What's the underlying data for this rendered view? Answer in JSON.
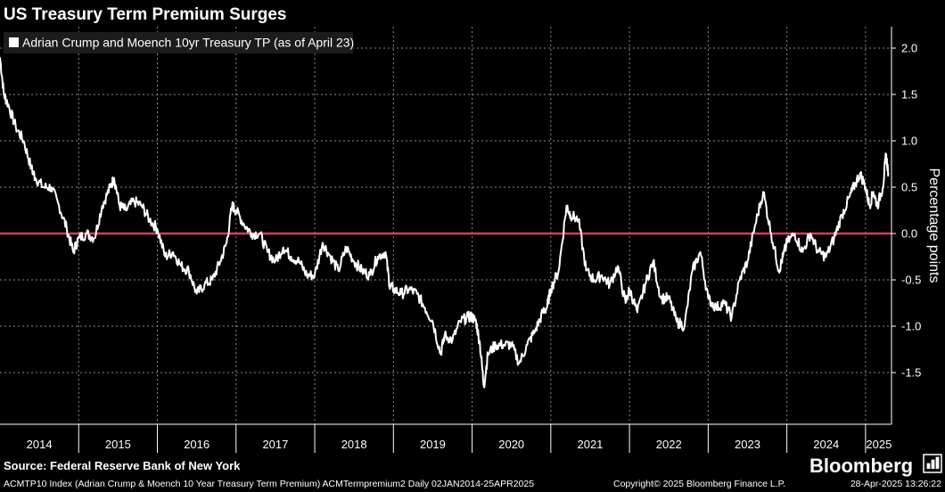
{
  "chart_data": {
    "type": "line",
    "title": "US Treasury Term Premium Surges",
    "legend": "Adrian Crump and Moench 10yr Treasury TP (as of April 23)",
    "legend_position": "top-left",
    "ylabel": "Percentage points",
    "xlabel": "",
    "ylim": [
      -2.0,
      2.2
    ],
    "y_ticks": [
      "2.0",
      "1.5",
      "1.0",
      "0.5",
      "0.0",
      "-0.5",
      "-1.0",
      "-1.5"
    ],
    "x_ticks": [
      "2014",
      "2015",
      "2016",
      "2017",
      "2018",
      "2019",
      "2020",
      "2021",
      "2022",
      "2023",
      "2024",
      "2025"
    ],
    "xlim": [
      2014.0,
      2025.33
    ],
    "grid": true,
    "reference_line": {
      "y": 0.0,
      "color": "#d2424e"
    },
    "series": [
      {
        "color": "#ffffff",
        "points": [
          [
            2014.0,
            1.9
          ],
          [
            2014.05,
            1.5
          ],
          [
            2014.1,
            1.4
          ],
          [
            2014.2,
            1.15
          ],
          [
            2014.3,
            1.0
          ],
          [
            2014.4,
            0.7
          ],
          [
            2014.45,
            0.6
          ],
          [
            2014.55,
            0.5
          ],
          [
            2014.65,
            0.5
          ],
          [
            2014.75,
            0.3
          ],
          [
            2014.85,
            0.05
          ],
          [
            2014.93,
            -0.2
          ],
          [
            2015.0,
            -0.05
          ],
          [
            2015.1,
            0.0
          ],
          [
            2015.2,
            -0.05
          ],
          [
            2015.3,
            0.3
          ],
          [
            2015.4,
            0.5
          ],
          [
            2015.45,
            0.6
          ],
          [
            2015.52,
            0.3
          ],
          [
            2015.6,
            0.25
          ],
          [
            2015.7,
            0.35
          ],
          [
            2015.8,
            0.3
          ],
          [
            2015.9,
            0.15
          ],
          [
            2016.0,
            0.05
          ],
          [
            2016.1,
            -0.25
          ],
          [
            2016.2,
            -0.2
          ],
          [
            2016.3,
            -0.35
          ],
          [
            2016.4,
            -0.4
          ],
          [
            2016.5,
            -0.65
          ],
          [
            2016.6,
            -0.55
          ],
          [
            2016.7,
            -0.5
          ],
          [
            2016.8,
            -0.3
          ],
          [
            2016.88,
            -0.1
          ],
          [
            2016.95,
            0.3
          ],
          [
            2017.0,
            0.25
          ],
          [
            2017.1,
            0.1
          ],
          [
            2017.2,
            0.0
          ],
          [
            2017.3,
            0.0
          ],
          [
            2017.4,
            -0.2
          ],
          [
            2017.5,
            -0.3
          ],
          [
            2017.6,
            -0.15
          ],
          [
            2017.7,
            -0.25
          ],
          [
            2017.8,
            -0.3
          ],
          [
            2017.9,
            -0.45
          ],
          [
            2018.0,
            -0.45
          ],
          [
            2018.1,
            -0.1
          ],
          [
            2018.2,
            -0.25
          ],
          [
            2018.3,
            -0.4
          ],
          [
            2018.4,
            -0.15
          ],
          [
            2018.5,
            -0.3
          ],
          [
            2018.6,
            -0.4
          ],
          [
            2018.7,
            -0.45
          ],
          [
            2018.8,
            -0.25
          ],
          [
            2018.9,
            -0.2
          ],
          [
            2018.95,
            -0.55
          ],
          [
            2019.0,
            -0.6
          ],
          [
            2019.1,
            -0.65
          ],
          [
            2019.2,
            -0.6
          ],
          [
            2019.3,
            -0.65
          ],
          [
            2019.4,
            -0.8
          ],
          [
            2019.5,
            -0.95
          ],
          [
            2019.6,
            -1.3
          ],
          [
            2019.65,
            -1.1
          ],
          [
            2019.75,
            -1.15
          ],
          [
            2019.85,
            -0.95
          ],
          [
            2019.95,
            -0.9
          ],
          [
            2020.0,
            -0.9
          ],
          [
            2020.05,
            -0.95
          ],
          [
            2020.1,
            -1.2
          ],
          [
            2020.15,
            -1.65
          ],
          [
            2020.2,
            -1.3
          ],
          [
            2020.3,
            -1.2
          ],
          [
            2020.4,
            -1.2
          ],
          [
            2020.5,
            -1.2
          ],
          [
            2020.6,
            -1.4
          ],
          [
            2020.7,
            -1.2
          ],
          [
            2020.8,
            -1.05
          ],
          [
            2020.9,
            -0.85
          ],
          [
            2020.95,
            -0.8
          ],
          [
            2021.0,
            -0.6
          ],
          [
            2021.1,
            -0.4
          ],
          [
            2021.2,
            0.3
          ],
          [
            2021.25,
            0.2
          ],
          [
            2021.35,
            0.15
          ],
          [
            2021.45,
            -0.4
          ],
          [
            2021.55,
            -0.5
          ],
          [
            2021.65,
            -0.45
          ],
          [
            2021.75,
            -0.55
          ],
          [
            2021.85,
            -0.35
          ],
          [
            2021.95,
            -0.75
          ],
          [
            2022.0,
            -0.6
          ],
          [
            2022.1,
            -0.85
          ],
          [
            2022.2,
            -0.55
          ],
          [
            2022.3,
            -0.3
          ],
          [
            2022.4,
            -0.7
          ],
          [
            2022.5,
            -0.7
          ],
          [
            2022.6,
            -0.95
          ],
          [
            2022.7,
            -1.0
          ],
          [
            2022.8,
            -0.4
          ],
          [
            2022.9,
            -0.2
          ],
          [
            2023.0,
            -0.7
          ],
          [
            2023.1,
            -0.8
          ],
          [
            2023.2,
            -0.75
          ],
          [
            2023.3,
            -0.9
          ],
          [
            2023.4,
            -0.5
          ],
          [
            2023.5,
            -0.3
          ],
          [
            2023.6,
            0.1
          ],
          [
            2023.7,
            0.45
          ],
          [
            2023.8,
            0.0
          ],
          [
            2023.9,
            -0.4
          ],
          [
            2023.95,
            -0.25
          ],
          [
            2024.0,
            -0.1
          ],
          [
            2024.1,
            0.0
          ],
          [
            2024.2,
            -0.2
          ],
          [
            2024.3,
            0.0
          ],
          [
            2024.4,
            -0.2
          ],
          [
            2024.5,
            -0.25
          ],
          [
            2024.6,
            -0.05
          ],
          [
            2024.7,
            0.2
          ],
          [
            2024.8,
            0.4
          ],
          [
            2024.85,
            0.5
          ],
          [
            2024.93,
            0.65
          ],
          [
            2025.0,
            0.5
          ],
          [
            2025.05,
            0.3
          ],
          [
            2025.1,
            0.45
          ],
          [
            2025.15,
            0.3
          ],
          [
            2025.22,
            0.5
          ],
          [
            2025.26,
            0.85
          ],
          [
            2025.29,
            0.65
          ]
        ]
      }
    ]
  },
  "footer": {
    "source": "Source: Federal Reserve Bank of New York",
    "brand": "Bloomberg",
    "index_info": "ACMTP10 Index (Adrian Crump & Moench 10 Year Treasury Term Premium) ACMTermpremium2  Daily 02JAN2014-25APR2025",
    "copyright": "Copyright© 2025 Bloomberg Finance L.P.",
    "timestamp": "28-Apr-2025 13:26:22"
  }
}
